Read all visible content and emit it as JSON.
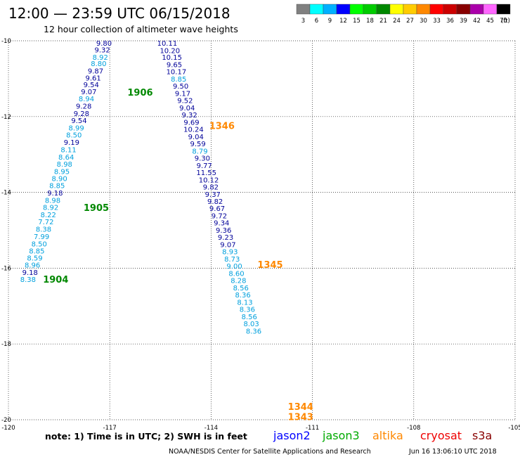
{
  "header": {
    "title": "12:00 — 23:59 UTC 06/15/2018",
    "subtitle": "12 hour collection of altimeter wave heights"
  },
  "color_scale": {
    "bins": [
      {
        "label": "3",
        "color": "#808080"
      },
      {
        "label": "6",
        "color": "#00ffff"
      },
      {
        "label": "9",
        "color": "#00b0ff"
      },
      {
        "label": "12",
        "color": "#0000ff"
      },
      {
        "label": "15",
        "color": "#00ff00"
      },
      {
        "label": "18",
        "color": "#00cc00"
      },
      {
        "label": "21",
        "color": "#008800"
      },
      {
        "label": "24",
        "color": "#ffff00"
      },
      {
        "label": "27",
        "color": "#ffcc00"
      },
      {
        "label": "30",
        "color": "#ff8800"
      },
      {
        "label": "33",
        "color": "#ff0000"
      },
      {
        "label": "36",
        "color": "#cc0000"
      },
      {
        "label": "39",
        "color": "#880000"
      },
      {
        "label": "42",
        "color": "#aa00aa"
      },
      {
        "label": "45",
        "color": "#ff66ff"
      },
      {
        "label": "70",
        "color": "#000000"
      }
    ],
    "unit_label": "(ft)"
  },
  "axes": {
    "x_ticks": [
      -120,
      -117,
      -114,
      -111,
      -108,
      -105
    ],
    "x_tick_labels": [
      "-120",
      "-117",
      "-114",
      "-111",
      "-108",
      "-105"
    ],
    "y_ticks": [
      -10,
      -12,
      -14,
      -16,
      -18,
      -20
    ],
    "y_tick_labels": [
      "-10",
      "-12",
      "-14",
      "-16",
      "-18",
      "-20"
    ]
  },
  "chart_data": {
    "type": "scatter",
    "xlim": [
      -120,
      -105
    ],
    "ylim": [
      -20,
      -10
    ],
    "grid": true,
    "colors": {
      "dark_blue": "#000099",
      "light_blue": "#00a0dd",
      "green": "#008800",
      "orange": "#ff8800"
    },
    "tracks": [
      {
        "satellite": "jason3",
        "points": [
          {
            "lon": -117.17,
            "lat": -10.06,
            "value": "9.80",
            "color": "dark_blue"
          },
          {
            "lon": -117.22,
            "lat": -10.23,
            "value": "9.32",
            "color": "dark_blue"
          },
          {
            "lon": -117.28,
            "lat": -10.43,
            "value": "8.92",
            "color": "light_blue"
          },
          {
            "lon": -117.33,
            "lat": -10.59,
            "value": "8.80",
            "color": "light_blue"
          },
          {
            "lon": -117.42,
            "lat": -10.79,
            "value": "9.87",
            "color": "dark_blue"
          },
          {
            "lon": -117.49,
            "lat": -10.97,
            "value": "9.61",
            "color": "dark_blue"
          },
          {
            "lon": -117.55,
            "lat": -11.15,
            "value": "9.54",
            "color": "dark_blue"
          },
          {
            "lon": -117.62,
            "lat": -11.34,
            "value": "9.07",
            "color": "dark_blue"
          },
          {
            "lon": -117.69,
            "lat": -11.52,
            "value": "8.94",
            "color": "light_blue"
          },
          {
            "lon": -117.77,
            "lat": -11.72,
            "value": "9.28",
            "color": "dark_blue"
          },
          {
            "lon": -117.84,
            "lat": -11.91,
            "value": "9.28",
            "color": "dark_blue"
          },
          {
            "lon": -117.91,
            "lat": -12.1,
            "value": "9.54",
            "color": "dark_blue"
          },
          {
            "lon": -117.99,
            "lat": -12.29,
            "value": "8.99",
            "color": "light_blue"
          },
          {
            "lon": -118.06,
            "lat": -12.48,
            "value": "8.50",
            "color": "light_blue"
          },
          {
            "lon": -118.13,
            "lat": -12.67,
            "value": "9.19",
            "color": "dark_blue"
          },
          {
            "lon": -118.22,
            "lat": -12.87,
            "value": "8.11",
            "color": "light_blue"
          },
          {
            "lon": -118.29,
            "lat": -13.06,
            "value": "8.64",
            "color": "light_blue"
          },
          {
            "lon": -118.34,
            "lat": -13.25,
            "value": "8.98",
            "color": "light_blue"
          },
          {
            "lon": -118.42,
            "lat": -13.44,
            "value": "8.95",
            "color": "light_blue"
          },
          {
            "lon": -118.49,
            "lat": -13.63,
            "value": "8.90",
            "color": "light_blue"
          },
          {
            "lon": -118.56,
            "lat": -13.81,
            "value": "8.85",
            "color": "light_blue"
          },
          {
            "lon": -118.62,
            "lat": -14.01,
            "value": "9.18",
            "color": "dark_blue"
          },
          {
            "lon": -118.69,
            "lat": -14.2,
            "value": "8.98",
            "color": "light_blue"
          },
          {
            "lon": -118.75,
            "lat": -14.39,
            "value": "8.92",
            "color": "light_blue"
          },
          {
            "lon": -118.82,
            "lat": -14.58,
            "value": "8.22",
            "color": "light_blue"
          },
          {
            "lon": -118.89,
            "lat": -14.77,
            "value": "7.72",
            "color": "light_blue"
          },
          {
            "lon": -118.96,
            "lat": -14.96,
            "value": "8.38",
            "color": "light_blue"
          },
          {
            "lon": -119.02,
            "lat": -15.16,
            "value": "7.99",
            "color": "light_blue"
          },
          {
            "lon": -119.09,
            "lat": -15.35,
            "value": "8.50",
            "color": "light_blue"
          },
          {
            "lon": -119.16,
            "lat": -15.54,
            "value": "8.85",
            "color": "light_blue"
          },
          {
            "lon": -119.22,
            "lat": -15.72,
            "value": "8.59",
            "color": "light_blue"
          },
          {
            "lon": -119.29,
            "lat": -15.91,
            "value": "8.96",
            "color": "light_blue"
          },
          {
            "lon": -119.36,
            "lat": -16.1,
            "value": "9.18",
            "color": "dark_blue"
          },
          {
            "lon": -119.42,
            "lat": -16.29,
            "value": "8.38",
            "color": "light_blue"
          }
        ],
        "time_labels": [
          {
            "text": "1906",
            "lon": -116.1,
            "lat": -11.35
          },
          {
            "text": "1905",
            "lon": -117.4,
            "lat": -14.4
          },
          {
            "text": "1904",
            "lon": -118.6,
            "lat": -16.29
          }
        ]
      },
      {
        "satellite": "altika",
        "points": [
          {
            "lon": -115.3,
            "lat": -10.06,
            "value": "10.11",
            "color": "dark_blue"
          },
          {
            "lon": -115.22,
            "lat": -10.25,
            "value": "10.20",
            "color": "dark_blue"
          },
          {
            "lon": -115.16,
            "lat": -10.43,
            "value": "10.15",
            "color": "dark_blue"
          },
          {
            "lon": -115.09,
            "lat": -10.62,
            "value": "9.65",
            "color": "dark_blue"
          },
          {
            "lon": -115.03,
            "lat": -10.81,
            "value": "10.17",
            "color": "dark_blue"
          },
          {
            "lon": -114.96,
            "lat": -11.0,
            "value": "8.85",
            "color": "light_blue"
          },
          {
            "lon": -114.9,
            "lat": -11.19,
            "value": "9.50",
            "color": "dark_blue"
          },
          {
            "lon": -114.84,
            "lat": -11.38,
            "value": "9.17",
            "color": "dark_blue"
          },
          {
            "lon": -114.77,
            "lat": -11.57,
            "value": "9.52",
            "color": "dark_blue"
          },
          {
            "lon": -114.71,
            "lat": -11.76,
            "value": "9.04",
            "color": "dark_blue"
          },
          {
            "lon": -114.64,
            "lat": -11.95,
            "value": "9.32",
            "color": "dark_blue"
          },
          {
            "lon": -114.58,
            "lat": -12.14,
            "value": "9.69",
            "color": "dark_blue"
          },
          {
            "lon": -114.52,
            "lat": -12.33,
            "value": "10.24",
            "color": "dark_blue"
          },
          {
            "lon": -114.45,
            "lat": -12.52,
            "value": "9.04",
            "color": "dark_blue"
          },
          {
            "lon": -114.39,
            "lat": -12.71,
            "value": "9.59",
            "color": "dark_blue"
          },
          {
            "lon": -114.33,
            "lat": -12.9,
            "value": "8.79",
            "color": "light_blue"
          },
          {
            "lon": -114.26,
            "lat": -13.09,
            "value": "9.30",
            "color": "dark_blue"
          },
          {
            "lon": -114.2,
            "lat": -13.28,
            "value": "9.77",
            "color": "dark_blue"
          },
          {
            "lon": -114.14,
            "lat": -13.47,
            "value": "11.55",
            "color": "dark_blue"
          },
          {
            "lon": -114.07,
            "lat": -13.66,
            "value": "10.12",
            "color": "dark_blue"
          },
          {
            "lon": -114.01,
            "lat": -13.85,
            "value": "9.82",
            "color": "dark_blue"
          },
          {
            "lon": -113.95,
            "lat": -14.04,
            "value": "9.37",
            "color": "dark_blue"
          },
          {
            "lon": -113.88,
            "lat": -14.23,
            "value": "9.82",
            "color": "dark_blue"
          },
          {
            "lon": -113.82,
            "lat": -14.42,
            "value": "9.67",
            "color": "dark_blue"
          },
          {
            "lon": -113.76,
            "lat": -14.61,
            "value": "9.72",
            "color": "dark_blue"
          },
          {
            "lon": -113.69,
            "lat": -14.8,
            "value": "9.34",
            "color": "dark_blue"
          },
          {
            "lon": -113.63,
            "lat": -14.99,
            "value": "9.36",
            "color": "dark_blue"
          },
          {
            "lon": -113.57,
            "lat": -15.18,
            "value": "9.23",
            "color": "dark_blue"
          },
          {
            "lon": -113.5,
            "lat": -15.37,
            "value": "9.07",
            "color": "dark_blue"
          },
          {
            "lon": -113.44,
            "lat": -15.56,
            "value": "8.93",
            "color": "light_blue"
          },
          {
            "lon": -113.38,
            "lat": -15.75,
            "value": "8.73",
            "color": "light_blue"
          },
          {
            "lon": -113.31,
            "lat": -15.94,
            "value": "9.00",
            "color": "light_blue"
          },
          {
            "lon": -113.25,
            "lat": -16.13,
            "value": "8.60",
            "color": "light_blue"
          },
          {
            "lon": -113.19,
            "lat": -16.32,
            "value": "8.28",
            "color": "light_blue"
          },
          {
            "lon": -113.12,
            "lat": -16.51,
            "value": "8.56",
            "color": "light_blue"
          },
          {
            "lon": -113.06,
            "lat": -16.7,
            "value": "8.36",
            "color": "light_blue"
          },
          {
            "lon": -113.0,
            "lat": -16.89,
            "value": "8.13",
            "color": "light_blue"
          },
          {
            "lon": -112.93,
            "lat": -17.08,
            "value": "8.36",
            "color": "light_blue"
          },
          {
            "lon": -112.87,
            "lat": -17.27,
            "value": "8.56",
            "color": "light_blue"
          },
          {
            "lon": -112.81,
            "lat": -17.46,
            "value": "8.03",
            "color": "light_blue"
          },
          {
            "lon": -112.74,
            "lat": -17.65,
            "value": "8.36",
            "color": "light_blue"
          }
        ],
        "time_labels": [
          {
            "text": "1346",
            "lon": -113.68,
            "lat": -12.24
          },
          {
            "text": "1345",
            "lon": -112.25,
            "lat": -15.9
          },
          {
            "text": "1344",
            "lon": -111.35,
            "lat": -19.65
          },
          {
            "text": "1343",
            "lon": -111.35,
            "lat": -19.92
          }
        ]
      }
    ]
  },
  "footer": {
    "note": "note: 1) Time is in UTC; 2) SWH is in feet",
    "legend": [
      {
        "name": "jason2",
        "color": "#0000ff"
      },
      {
        "name": "jason3",
        "color": "#00aa00"
      },
      {
        "name": "altika",
        "color": "#ff8800"
      },
      {
        "name": "cryosat",
        "color": "#ee0000"
      },
      {
        "name": "s3a",
        "color": "#880000"
      }
    ],
    "credit": "NOAA/NESDIS Center for Satellite Applications and Research",
    "timestamp": "Jun 16 13:06:10 UTC 2018"
  }
}
